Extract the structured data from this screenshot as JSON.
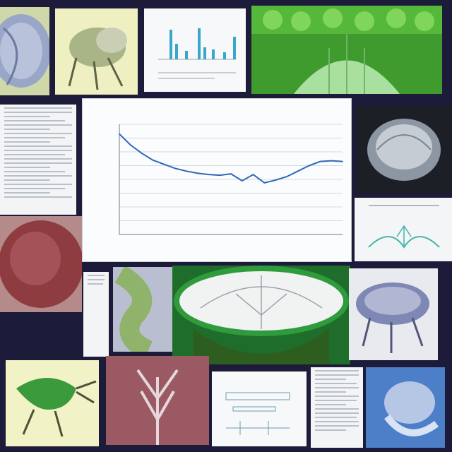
{
  "collage": {
    "tiles": [
      {
        "name": "lizard-scales-close-up",
        "kind": "photo"
      },
      {
        "name": "reptile-sketch",
        "kind": "illustration"
      },
      {
        "name": "bar-chart-figure",
        "kind": "chart"
      },
      {
        "name": "green-cell-tissue",
        "kind": "photo"
      },
      {
        "name": "text-document",
        "kind": "document"
      },
      {
        "name": "microscope-sphere",
        "kind": "photo"
      },
      {
        "name": "nerve-diagram",
        "kind": "diagram"
      },
      {
        "name": "red-tissue-texture",
        "kind": "photo"
      },
      {
        "name": "green-reptile-tail",
        "kind": "photo"
      },
      {
        "name": "green-bowl-cross-section",
        "kind": "illustration"
      },
      {
        "name": "blue-bone-specimen",
        "kind": "photo"
      },
      {
        "name": "lizard-drawing",
        "kind": "illustration"
      },
      {
        "name": "red-tree-texture",
        "kind": "photo"
      },
      {
        "name": "technical-schematic",
        "kind": "diagram"
      },
      {
        "name": "text-page",
        "kind": "document"
      },
      {
        "name": "blue-skull-specimen",
        "kind": "photo"
      }
    ]
  },
  "chart_data": {
    "type": "line",
    "title": "",
    "xlabel": "",
    "ylabel": "",
    "xlim": [
      0,
      20
    ],
    "ylim": [
      0,
      8
    ],
    "grid": true,
    "series": [
      {
        "x": [
          0,
          1,
          2,
          3,
          4,
          5,
          6,
          7,
          8,
          9,
          10,
          11,
          12,
          13,
          14,
          15,
          16,
          17,
          18,
          19,
          20
        ],
        "values": [
          7.3,
          6.5,
          5.9,
          5.4,
          5.1,
          4.8,
          4.6,
          4.45,
          4.35,
          4.3,
          4.4,
          3.9,
          4.35,
          3.75,
          3.95,
          4.2,
          4.6,
          5.0,
          5.3,
          5.35,
          5.3
        ]
      }
    ],
    "line_color": "#2f68b8"
  }
}
